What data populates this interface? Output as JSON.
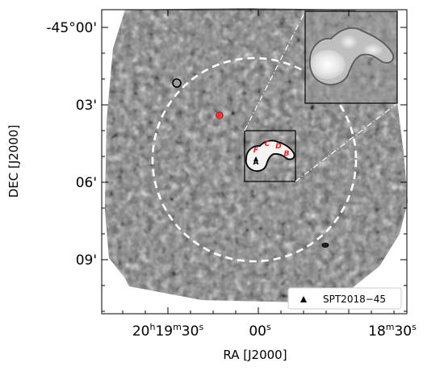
{
  "figure": {
    "y_axis": {
      "label": "DEC [J2000]",
      "ticks": [
        "-45°00'",
        "03'",
        "06'",
        "09'"
      ]
    },
    "x_axis": {
      "label": "RA [J2000]",
      "ticks": [
        {
          "main": "20",
          "h": "h",
          "mid": "19",
          "m": "m",
          "tail": "30",
          "s": "s"
        },
        {
          "main": "00",
          "s": "s"
        },
        {
          "main": "18",
          "m": "m",
          "tail": "30",
          "s": "s"
        }
      ]
    },
    "sources": [
      "A",
      "B",
      "C",
      "D",
      "E",
      "F"
    ],
    "legend": {
      "label": "SPT2018−45"
    },
    "colors": {
      "map_gray": "#7a7a7a",
      "contour": "#000000",
      "source_label": "#ff1a1a",
      "circle": "#ffffff"
    }
  }
}
